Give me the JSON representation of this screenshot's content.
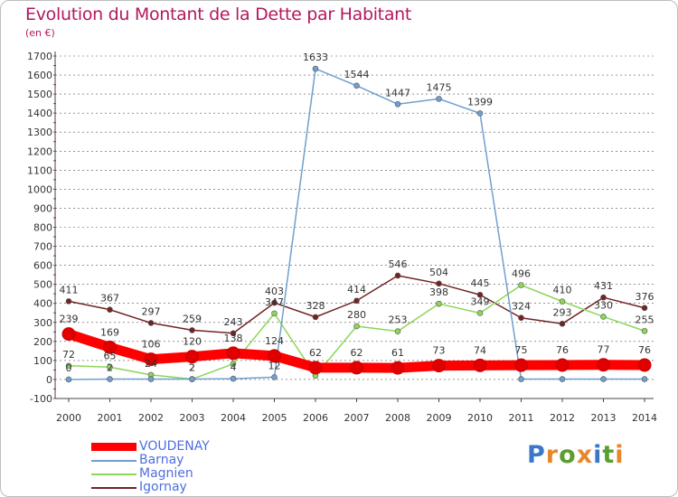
{
  "title": "Evolution du Montant de la Dette par Habitant",
  "subtitle": "(en €)",
  "logo": {
    "text": "Proxiti",
    "colors": [
      "#3a77c9",
      "#e7872d",
      "#5a9e2e",
      "#e7872d",
      "#3a77c9",
      "#5a9e2e",
      "#e7872d"
    ]
  },
  "colors": {
    "title": "#b5175f",
    "grid": "#555555",
    "axis": "#444444",
    "legend_text": "#4f6ee0",
    "tick_marks": "#c0285a"
  },
  "chart_data": {
    "type": "line",
    "title": "Evolution du Montant de la Dette par Habitant",
    "ylabel": "(en €)",
    "xlabel": "",
    "x": [
      "2000",
      "2001",
      "2002",
      "2003",
      "2004",
      "2005",
      "2006",
      "2007",
      "2008",
      "2009",
      "2010",
      "2011",
      "2012",
      "2013",
      "2014"
    ],
    "ylim": [
      -100,
      1700
    ],
    "yticks": [
      -100,
      0,
      100,
      200,
      300,
      400,
      500,
      600,
      700,
      800,
      900,
      1000,
      1100,
      1200,
      1300,
      1400,
      1500,
      1600,
      1700
    ],
    "grid": "horizontal dashed",
    "legend_position": "bottom-left",
    "series": [
      {
        "name": "Igornay",
        "color": "#722424",
        "width": 1.5,
        "marker": 6,
        "values": [
          411,
          367,
          297,
          259,
          243,
          403,
          328,
          414,
          546,
          504,
          445,
          324,
          293,
          431,
          376
        ],
        "labels": [
          "411",
          "367",
          "297",
          "259",
          "243",
          "403",
          "328",
          "414",
          "546",
          "504",
          "445",
          "324",
          "293",
          "431",
          "376"
        ]
      },
      {
        "name": "Magnien",
        "color": "#8dd65a",
        "width": 1.5,
        "marker": 6,
        "values": [
          72,
          65,
          24,
          2,
          82,
          347,
          20,
          280,
          253,
          398,
          349,
          496,
          410,
          330,
          255
        ],
        "labels": [
          "72",
          "65",
          "24",
          "2",
          "",
          "347",
          "",
          "280",
          "253",
          "398",
          "349",
          "496",
          "410",
          "330",
          "255"
        ]
      },
      {
        "name": "Barnay",
        "color": "#6fa0d0",
        "width": 1.5,
        "marker": 6,
        "values": [
          0,
          2,
          2,
          2,
          4,
          12,
          1633,
          1544,
          1447,
          1475,
          1399,
          2,
          2,
          2,
          2
        ],
        "labels": [
          "0",
          "2",
          "",
          "2",
          "4",
          "12",
          "1633",
          "1544",
          "1447",
          "1475",
          "1399",
          "",
          "",
          "",
          ""
        ]
      },
      {
        "name": "VOUDENAY",
        "color": "#ff0000",
        "width": 11,
        "marker": 14,
        "values": [
          239,
          169,
          106,
          120,
          138,
          124,
          62,
          62,
          61,
          73,
          74,
          75,
          76,
          77,
          76
        ],
        "labels": [
          "239",
          "169",
          "106",
          "120",
          "138",
          "124",
          "62",
          "62",
          "61",
          "73",
          "74",
          "75",
          "76",
          "77",
          "76"
        ]
      }
    ],
    "legend": [
      "VOUDENAY",
      "Barnay",
      "Magnien",
      "Igornay"
    ]
  }
}
